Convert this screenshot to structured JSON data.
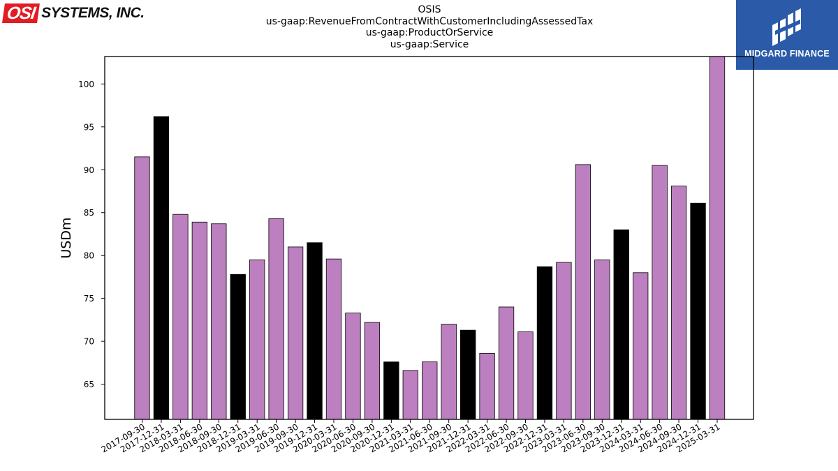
{
  "logos": {
    "osi_box": "OSI",
    "osi_rest": "SYSTEMS, INC.",
    "midgard": "MIDGARD FINANCE"
  },
  "chart_data": {
    "type": "bar",
    "title_lines": [
      "OSIS",
      "us-gaap:RevenueFromContractWithCustomerIncludingAssessedTax",
      "us-gaap:ProductOrService",
      "us-gaap:Service"
    ],
    "xlabel": "",
    "ylabel": "USDm",
    "ylim": [
      60.9,
      103.2
    ],
    "yticks": [
      65,
      70,
      75,
      80,
      85,
      90,
      95,
      100
    ],
    "grid": false,
    "colors": {
      "quarter": "#bc7fbf",
      "year_end": "#000000"
    },
    "categories": [
      "2017-09-30",
      "2017-12-31",
      "2018-03-31",
      "2018-06-30",
      "2018-09-30",
      "2018-12-31",
      "2019-03-31",
      "2019-06-30",
      "2019-09-30",
      "2019-12-31",
      "2020-03-31",
      "2020-06-30",
      "2020-09-30",
      "2020-12-31",
      "2021-03-31",
      "2021-06-30",
      "2021-09-30",
      "2021-12-31",
      "2022-03-31",
      "2022-06-30",
      "2022-09-30",
      "2022-12-31",
      "2023-03-31",
      "2023-06-30",
      "2023-09-30",
      "2023-12-31",
      "2024-03-31",
      "2024-06-30",
      "2024-09-30",
      "2024-12-31",
      "2025-03-31"
    ],
    "values": [
      91.5,
      96.2,
      84.8,
      83.9,
      83.7,
      77.8,
      79.5,
      84.3,
      81.0,
      81.5,
      79.6,
      73.3,
      72.2,
      67.6,
      66.6,
      67.6,
      72.0,
      71.3,
      68.6,
      74.0,
      71.1,
      78.7,
      79.2,
      90.6,
      79.5,
      83.0,
      78.0,
      90.5,
      88.1,
      86.1,
      103.2
    ],
    "highlight": [
      false,
      true,
      false,
      false,
      false,
      true,
      false,
      false,
      false,
      true,
      false,
      false,
      false,
      true,
      false,
      false,
      false,
      true,
      false,
      false,
      false,
      true,
      false,
      false,
      false,
      true,
      false,
      false,
      false,
      true,
      false
    ]
  }
}
